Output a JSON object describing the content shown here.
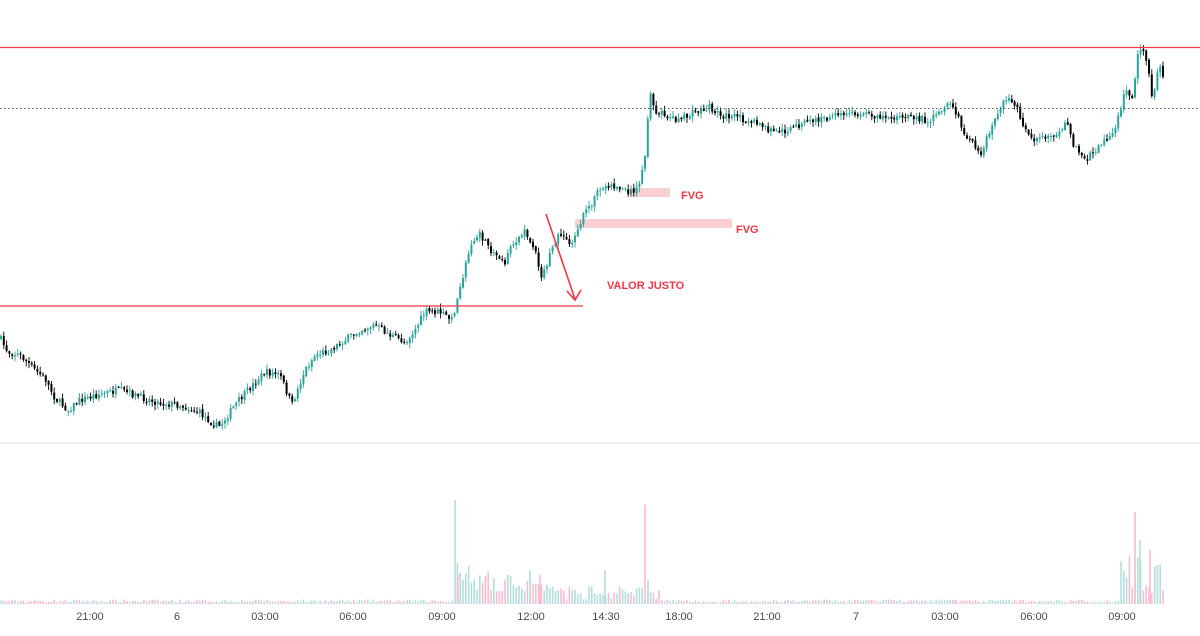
{
  "chart_data": {
    "type": "candlestick",
    "title": "",
    "colors": {
      "up": "#26a69a",
      "down": "#000000",
      "volume_up": "#b2dfdb",
      "volume_down": "#f8bbd0",
      "annotation": "#f23645",
      "fvg_zone": "#fbd0d4",
      "dotted_level": "#555555",
      "separator": "#e0e0e0"
    },
    "x_ticks": [
      "21:00",
      "6",
      "03:00",
      "06:00",
      "09:00",
      "12:00",
      "14:30",
      "18:00",
      "21:00",
      "7",
      "03:00",
      "06:00",
      "09:00"
    ],
    "price_path": [
      [
        0,
        338
      ],
      [
        8,
        352
      ],
      [
        20,
        355
      ],
      [
        35,
        370
      ],
      [
        45,
        378
      ],
      [
        55,
        398
      ],
      [
        68,
        410
      ],
      [
        80,
        400
      ],
      [
        100,
        394
      ],
      [
        120,
        390
      ],
      [
        140,
        397
      ],
      [
        160,
        403
      ],
      [
        180,
        405
      ],
      [
        200,
        413
      ],
      [
        215,
        425
      ],
      [
        220,
        426
      ],
      [
        235,
        405
      ],
      [
        250,
        388
      ],
      [
        265,
        372
      ],
      [
        280,
        375
      ],
      [
        292,
        405
      ],
      [
        305,
        370
      ],
      [
        315,
        355
      ],
      [
        330,
        350
      ],
      [
        345,
        340
      ],
      [
        360,
        330
      ],
      [
        375,
        325
      ],
      [
        390,
        335
      ],
      [
        405,
        342
      ],
      [
        415,
        330
      ],
      [
        425,
        312
      ],
      [
        440,
        312
      ],
      [
        452,
        320
      ],
      [
        460,
        290
      ],
      [
        470,
        245
      ],
      [
        480,
        235
      ],
      [
        490,
        250
      ],
      [
        505,
        262
      ],
      [
        515,
        240
      ],
      [
        525,
        232
      ],
      [
        535,
        250
      ],
      [
        542,
        278
      ],
      [
        550,
        255
      ],
      [
        560,
        232
      ],
      [
        570,
        245
      ],
      [
        580,
        222
      ],
      [
        590,
        205
      ],
      [
        600,
        190
      ],
      [
        610,
        185
      ],
      [
        620,
        188
      ],
      [
        630,
        192
      ],
      [
        640,
        185
      ],
      [
        645,
        155
      ],
      [
        650,
        95
      ],
      [
        655,
        110
      ],
      [
        665,
        115
      ],
      [
        680,
        120
      ],
      [
        695,
        112
      ],
      [
        710,
        107
      ],
      [
        720,
        115
      ],
      [
        740,
        118
      ],
      [
        755,
        122
      ],
      [
        765,
        128
      ],
      [
        775,
        132
      ],
      [
        790,
        130
      ],
      [
        800,
        124
      ],
      [
        815,
        120
      ],
      [
        830,
        118
      ],
      [
        850,
        113
      ],
      [
        870,
        115
      ],
      [
        890,
        117
      ],
      [
        910,
        118
      ],
      [
        930,
        120
      ],
      [
        945,
        110
      ],
      [
        950,
        102
      ],
      [
        958,
        118
      ],
      [
        965,
        133
      ],
      [
        975,
        148
      ],
      [
        980,
        155
      ],
      [
        990,
        130
      ],
      [
        1000,
        108
      ],
      [
        1008,
        98
      ],
      [
        1015,
        103
      ],
      [
        1022,
        122
      ],
      [
        1030,
        137
      ],
      [
        1040,
        140
      ],
      [
        1050,
        136
      ],
      [
        1060,
        130
      ],
      [
        1066,
        122
      ],
      [
        1075,
        148
      ],
      [
        1085,
        160
      ],
      [
        1095,
        150
      ],
      [
        1105,
        140
      ],
      [
        1115,
        130
      ],
      [
        1125,
        92
      ],
      [
        1132,
        100
      ],
      [
        1138,
        55
      ],
      [
        1142,
        42
      ],
      [
        1148,
        68
      ],
      [
        1152,
        100
      ],
      [
        1158,
        72
      ],
      [
        1162,
        62
      ],
      [
        1165,
        110
      ]
    ],
    "volume_spikes": [
      [
        455,
        500
      ],
      [
        458,
        575
      ],
      [
        530,
        570
      ],
      [
        540,
        575
      ],
      [
        605,
        570
      ],
      [
        645,
        505
      ],
      [
        648,
        580
      ],
      [
        1135,
        512
      ],
      [
        1140,
        540
      ],
      [
        1150,
        550
      ]
    ],
    "levels": {
      "upper_line_y": 47.5,
      "dotted_line_y": 108.5,
      "lower_line_y": 306
    },
    "annotations": {
      "fvg1": "FVG",
      "fvg2": "FVG",
      "valor": "VALOR JUSTO"
    },
    "grid": false,
    "legend": "none"
  }
}
